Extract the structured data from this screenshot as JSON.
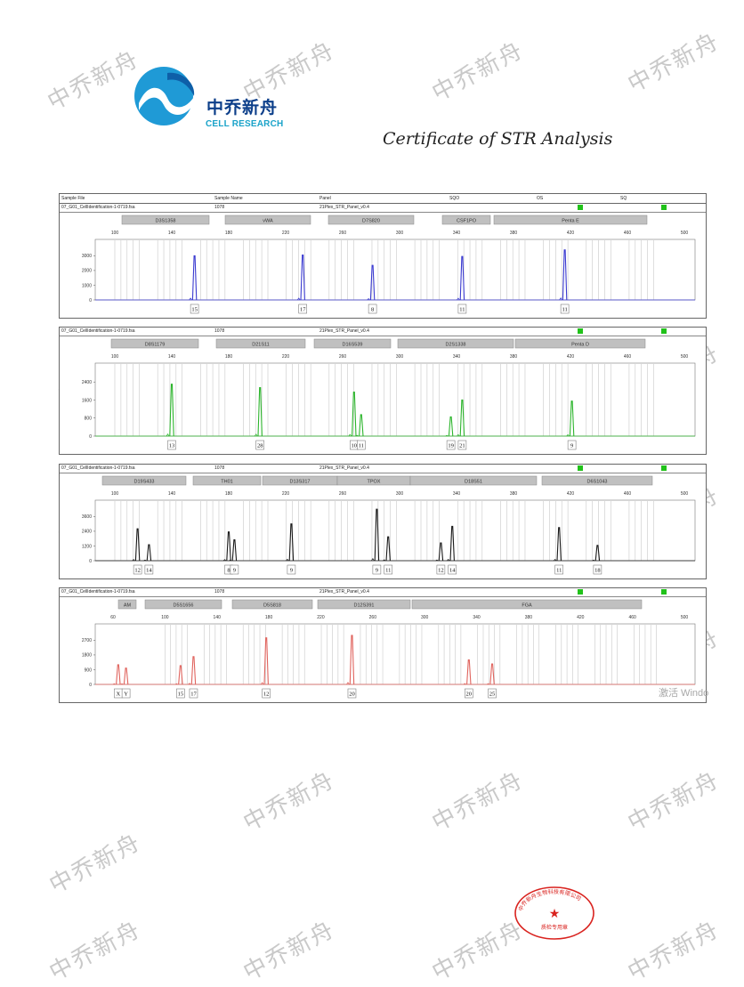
{
  "watermark_text": "中乔新舟",
  "brand": {
    "name_cn": "中乔新舟",
    "name_en": "CELL RESEARCH"
  },
  "title": "Certificate of STR Analysis",
  "table_header": {
    "sample_file": "Sample File",
    "sample_name": "Sample Name",
    "panel": "Panel",
    "sqo": "SQO",
    "os": "OS",
    "sq": "SQ"
  },
  "panel_rows": {
    "file": "07_G01_CellIdentification-1-0719.fsa",
    "sample": "1078",
    "panel": "21Plex_STR_Panel_v0.4"
  },
  "x_ticks": [
    "100",
    "140",
    "180",
    "220",
    "260",
    "300",
    "340",
    "380",
    "420",
    "460",
    "500"
  ],
  "x_ticks_red": [
    "60",
    "100",
    "140",
    "180",
    "220",
    "260",
    "300",
    "340",
    "380",
    "420",
    "460",
    "500"
  ],
  "seal": {
    "line1": "中乔新舟生物科技有限公司",
    "line2": "质检专用章"
  },
  "activation_text": "激活 Windo",
  "colors": {
    "blue": "#3b3bd0",
    "green": "#2db52d",
    "black": "#1a1a1a",
    "red": "#e0645e",
    "bins": "#c8c8c8",
    "box": "#c0c0c0"
  },
  "chart_data": [
    {
      "type": "line",
      "dye": "blue",
      "loci": [
        "D3S1358",
        "vWA",
        "D7S820",
        "CSF1PO",
        "Penta E"
      ],
      "y_ticks": [
        "3000",
        "2000",
        "1000",
        "0"
      ],
      "peaks": [
        {
          "size": 156,
          "height": 3000,
          "allele": "15"
        },
        {
          "size": 232,
          "height": 3050,
          "allele": "17"
        },
        {
          "size": 281,
          "height": 2350,
          "allele": "8"
        },
        {
          "size": 344,
          "height": 2950,
          "allele": "11"
        },
        {
          "size": 416,
          "height": 3400,
          "allele": "11"
        }
      ]
    },
    {
      "type": "line",
      "dye": "green",
      "loci": [
        "D8S1179",
        "D21S11",
        "D16S539",
        "D2S1338",
        "Penta D"
      ],
      "y_ticks": [
        "2400",
        "1600",
        "800",
        "0"
      ],
      "peaks": [
        {
          "size": 140,
          "height": 2300,
          "allele": "13"
        },
        {
          "size": 202,
          "height": 2150,
          "allele": "28"
        },
        {
          "size": 268,
          "height": 1950,
          "allele": "10"
        },
        {
          "size": 273,
          "height": 950,
          "allele": "11"
        },
        {
          "size": 336,
          "height": 850,
          "allele": "19"
        },
        {
          "size": 344,
          "height": 1600,
          "allele": "21"
        },
        {
          "size": 421,
          "height": 1550,
          "allele": "9"
        }
      ]
    },
    {
      "type": "line",
      "dye": "black",
      "loci": [
        "D19S433",
        "TH01",
        "D13S317",
        "TPOX",
        "D18S51",
        "D6S1043"
      ],
      "y_ticks": [
        "3600",
        "2400",
        "1200",
        "0"
      ],
      "peaks": [
        {
          "size": 116,
          "height": 2600,
          "allele": "12"
        },
        {
          "size": 124,
          "height": 1300,
          "allele": "14"
        },
        {
          "size": 180,
          "height": 2350,
          "allele": "8"
        },
        {
          "size": 184,
          "height": 1700,
          "allele": "9"
        },
        {
          "size": 224,
          "height": 3000,
          "allele": "9"
        },
        {
          "size": 284,
          "height": 4200,
          "allele": "9"
        },
        {
          "size": 292,
          "height": 1950,
          "allele": "11"
        },
        {
          "size": 329,
          "height": 1450,
          "allele": "12"
        },
        {
          "size": 337,
          "height": 2800,
          "allele": "14"
        },
        {
          "size": 412,
          "height": 2700,
          "allele": "11"
        },
        {
          "size": 439,
          "height": 1250,
          "allele": "18"
        }
      ]
    },
    {
      "type": "line",
      "dye": "red",
      "loci": [
        "AM",
        "D5S1656",
        "D5S818",
        "D12S391",
        "FGA"
      ],
      "y_ticks": [
        "2700",
        "1800",
        "900",
        "0"
      ],
      "peaks": [
        {
          "size": 64,
          "height": 1200,
          "allele": "X"
        },
        {
          "size": 70,
          "height": 1000,
          "allele": "Y"
        },
        {
          "size": 112,
          "height": 1150,
          "allele": "15"
        },
        {
          "size": 122,
          "height": 1700,
          "allele": "17"
        },
        {
          "size": 178,
          "height": 2850,
          "allele": "12"
        },
        {
          "size": 244,
          "height": 3000,
          "allele": "20"
        },
        {
          "size": 334,
          "height": 1500,
          "allele": "20"
        },
        {
          "size": 352,
          "height": 1250,
          "allele": "25"
        }
      ]
    }
  ]
}
